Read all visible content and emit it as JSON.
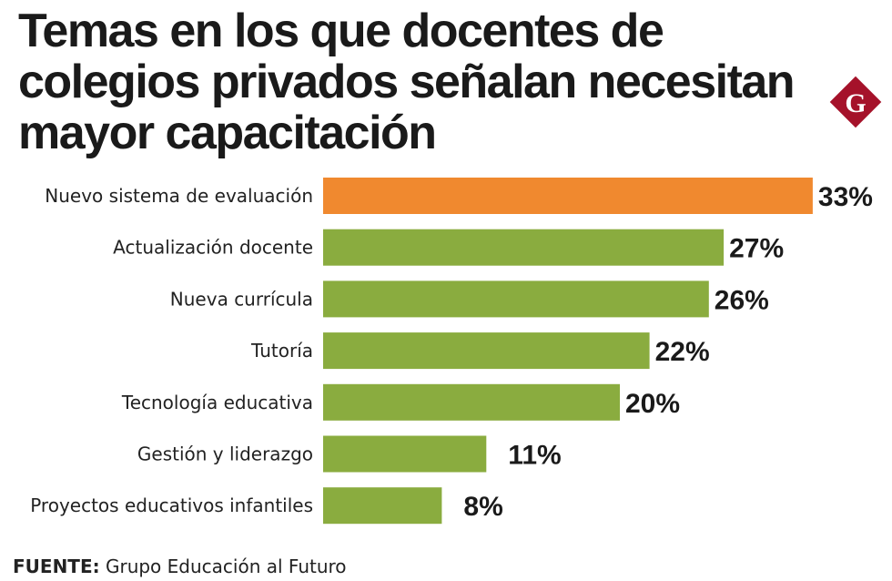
{
  "chart_data": {
    "type": "bar",
    "orientation": "horizontal",
    "title": "Temas en los que docentes de colegios privados señalan necesitan mayor capacitación",
    "categories": [
      "Nuevo sistema de evaluación",
      "Actualización docente",
      "Nueva currícula",
      "Tutoría",
      "Tecnología educativa",
      "Gestión y liderazgo",
      "Proyectos educativos infantiles"
    ],
    "values": [
      33,
      27,
      26,
      22,
      20,
      11,
      8
    ],
    "data_labels": [
      "33%",
      "27%",
      "26%",
      "22%",
      "20%",
      "11%",
      "8%"
    ],
    "unit": "%",
    "highlight_index": 0,
    "colors": {
      "highlight": "#f0892f",
      "default": "#8aac3f"
    },
    "grid": false,
    "legend": "none"
  },
  "source": {
    "label": "FUENTE:",
    "text": " Grupo Educación al Futuro"
  },
  "logo": {
    "letter": "G",
    "color": "#a5122a"
  }
}
